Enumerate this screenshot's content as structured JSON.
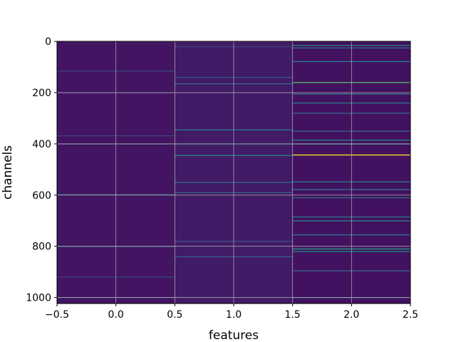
{
  "chart_data": {
    "type": "heatmap",
    "title": "",
    "xlabel": "features",
    "ylabel": "channels",
    "xlim": [
      -0.5,
      2.5
    ],
    "ylim": [
      1023.5,
      -0.5
    ],
    "y_axis_inverted": true,
    "grid": true,
    "colormap": "viridis",
    "n_channels": 1024,
    "n_features": 3,
    "x_ticks": [
      -0.5,
      0.0,
      0.5,
      1.0,
      1.5,
      2.0,
      2.5
    ],
    "x_tick_labels": [
      "−0.5",
      "0.0",
      "0.5",
      "1.0",
      "1.5",
      "2.0",
      "2.5"
    ],
    "y_ticks": [
      0,
      200,
      400,
      600,
      800,
      1000
    ],
    "y_tick_labels": [
      "0",
      "200",
      "400",
      "600",
      "800",
      "1000"
    ],
    "feature_columns": [
      {
        "feature": 0,
        "background_value": 0.06,
        "highlights": [
          {
            "channel": 115,
            "value": 0.2
          },
          {
            "channel": 200,
            "value": 0.18
          },
          {
            "channel": 368,
            "value": 0.2
          },
          {
            "channel": 400,
            "value": 0.28
          },
          {
            "channel": 598,
            "value": 0.3
          },
          {
            "channel": 800,
            "value": 0.4
          },
          {
            "channel": 920,
            "value": 0.2
          },
          {
            "channel": 1000,
            "value": 0.25
          }
        ]
      },
      {
        "feature": 1,
        "background_value": 0.08,
        "highlights": [
          {
            "channel": 20,
            "value": 0.2
          },
          {
            "channel": 140,
            "value": 0.25
          },
          {
            "channel": 165,
            "value": 0.35
          },
          {
            "channel": 345,
            "value": 0.4
          },
          {
            "channel": 400,
            "value": 0.3
          },
          {
            "channel": 445,
            "value": 0.45
          },
          {
            "channel": 550,
            "value": 0.35
          },
          {
            "channel": 590,
            "value": 0.3
          },
          {
            "channel": 780,
            "value": 0.25
          },
          {
            "channel": 840,
            "value": 0.3
          }
        ]
      },
      {
        "feature": 2,
        "background_value": 0.05,
        "highlights": [
          {
            "channel": 15,
            "value": 0.45
          },
          {
            "channel": 25,
            "value": 0.35
          },
          {
            "channel": 78,
            "value": 0.45
          },
          {
            "channel": 160,
            "value": 0.7
          },
          {
            "channel": 205,
            "value": 0.4
          },
          {
            "channel": 240,
            "value": 0.4
          },
          {
            "channel": 280,
            "value": 0.35
          },
          {
            "channel": 350,
            "value": 0.35
          },
          {
            "channel": 385,
            "value": 0.45
          },
          {
            "channel": 400,
            "value": 0.5
          },
          {
            "channel": 443,
            "value": 1.0
          },
          {
            "channel": 548,
            "value": 0.45
          },
          {
            "channel": 578,
            "value": 0.4
          },
          {
            "channel": 610,
            "value": 0.35
          },
          {
            "channel": 685,
            "value": 0.4
          },
          {
            "channel": 700,
            "value": 0.45
          },
          {
            "channel": 755,
            "value": 0.4
          },
          {
            "channel": 810,
            "value": 0.55
          },
          {
            "channel": 820,
            "value": 0.5
          },
          {
            "channel": 895,
            "value": 0.35
          },
          {
            "channel": 1000,
            "value": 0.35
          }
        ]
      }
    ]
  }
}
